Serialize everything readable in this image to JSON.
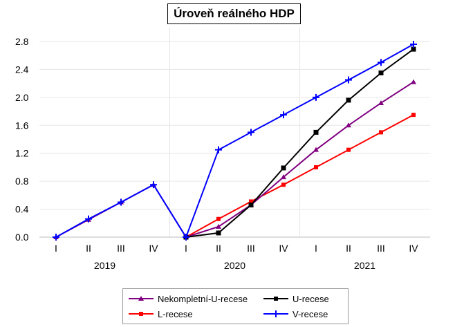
{
  "chart_data": {
    "type": "line",
    "title": "Úroveň reálného HDP",
    "xlabel": "",
    "ylabel": "",
    "x": [
      "I",
      "II",
      "III",
      "IV",
      "I",
      "II",
      "III",
      "IV",
      "I",
      "II",
      "III",
      "IV"
    ],
    "year_groups": [
      {
        "label": "2019",
        "start": 0,
        "end": 3
      },
      {
        "label": "2020",
        "start": 4,
        "end": 7
      },
      {
        "label": "2021",
        "start": 8,
        "end": 11
      }
    ],
    "ylim": [
      0,
      2.8
    ],
    "yticks": [
      "0.0",
      "0.4",
      "0.8",
      "1.2",
      "1.6",
      "2.0",
      "2.4",
      "2.8"
    ],
    "grid": true,
    "legend_position": "bottom",
    "series": [
      {
        "name": "Nekompletní-U-recese",
        "color": "#800080",
        "marker": "triangle",
        "values": [
          0,
          0.25,
          0.5,
          0.75,
          0,
          0.15,
          0.46,
          0.86,
          1.25,
          1.6,
          1.92,
          2.22
        ]
      },
      {
        "name": "U-recese",
        "color": "#000000",
        "marker": "square",
        "values": [
          null,
          null,
          null,
          null,
          0,
          0.06,
          0.46,
          0.99,
          1.5,
          1.96,
          2.35,
          2.69
        ]
      },
      {
        "name": "L-recese",
        "color": "#ff0000",
        "marker": "star",
        "values": [
          null,
          null,
          null,
          null,
          0,
          0.26,
          0.51,
          0.75,
          1.0,
          1.25,
          1.5,
          1.75
        ]
      },
      {
        "name": "V-recese",
        "color": "#0000ff",
        "marker": "plus",
        "values": [
          0,
          0.26,
          0.5,
          0.75,
          0,
          1.25,
          1.5,
          1.75,
          2.0,
          2.25,
          2.5,
          2.76
        ]
      }
    ]
  }
}
